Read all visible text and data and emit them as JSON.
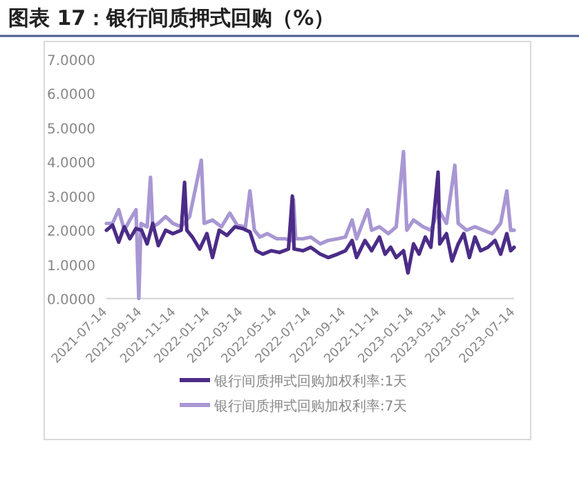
{
  "chart_data": {
    "type": "line",
    "title": "图表 17：银行间质押式回购（%）",
    "legend": "bottom",
    "line_style": "solid",
    "marker": "none",
    "grid": false,
    "xlim": [
      "2021-07-14",
      "2023-07-14"
    ],
    "xticks": [
      "2021-07-14",
      "2021-09-14",
      "2021-11-14",
      "2022-01-14",
      "2022-03-14",
      "2022-05-14",
      "2022-07-14",
      "2022-09-14",
      "2022-11-14",
      "2023-01-14",
      "2023-03-14",
      "2023-05-14",
      "2023-07-14"
    ],
    "ylim": [
      0,
      7
    ],
    "yticks": [
      {
        "value": 0,
        "label": "0.0000"
      },
      {
        "value": 1,
        "label": "1.0000"
      },
      {
        "value": 2,
        "label": "2.0000"
      },
      {
        "value": 3,
        "label": "3.0000"
      },
      {
        "value": 4,
        "label": "4.0000"
      },
      {
        "value": 5,
        "label": "5.0000"
      },
      {
        "value": 6,
        "label": "6.0000"
      },
      {
        "value": 7,
        "label": "7.0000"
      }
    ],
    "series": [
      {
        "name": "银行间质押式回购加权利率:1天",
        "color": "#4b2c87",
        "x": [
          "2021-07-14",
          "2021-07-25",
          "2021-08-05",
          "2021-08-15",
          "2021-08-25",
          "2021-09-05",
          "2021-09-15",
          "2021-09-25",
          "2021-10-05",
          "2021-10-15",
          "2021-10-28",
          "2021-11-10",
          "2021-11-25",
          "2021-12-01",
          "2021-12-05",
          "2021-12-15",
          "2021-12-28",
          "2022-01-10",
          "2022-01-20",
          "2022-02-01",
          "2022-02-15",
          "2022-03-01",
          "2022-03-15",
          "2022-03-28",
          "2022-04-08",
          "2022-04-20",
          "2022-05-05",
          "2022-05-20",
          "2022-06-05",
          "2022-06-12",
          "2022-06-15",
          "2022-07-01",
          "2022-07-15",
          "2022-08-01",
          "2022-08-15",
          "2022-09-01",
          "2022-09-15",
          "2022-09-27",
          "2022-10-05",
          "2022-10-20",
          "2022-11-01",
          "2022-11-15",
          "2022-11-25",
          "2022-12-05",
          "2022-12-15",
          "2022-12-28",
          "2023-01-05",
          "2023-01-15",
          "2023-01-25",
          "2023-02-05",
          "2023-02-15",
          "2023-02-28",
          "2023-03-03",
          "2023-03-15",
          "2023-03-25",
          "2023-04-05",
          "2023-04-15",
          "2023-04-25",
          "2023-05-05",
          "2023-05-15",
          "2023-05-28",
          "2023-06-10",
          "2023-06-20",
          "2023-07-01",
          "2023-07-08",
          "2023-07-14"
        ],
        "values": [
          2.0,
          2.15,
          1.65,
          2.1,
          1.75,
          2.05,
          2.0,
          1.6,
          2.2,
          1.55,
          2.0,
          1.9,
          2.0,
          3.4,
          2.0,
          1.8,
          1.45,
          1.9,
          1.2,
          2.0,
          1.85,
          2.1,
          2.05,
          1.95,
          1.4,
          1.3,
          1.4,
          1.35,
          1.45,
          3.0,
          1.45,
          1.4,
          1.5,
          1.3,
          1.2,
          1.3,
          1.4,
          1.7,
          1.2,
          1.7,
          1.4,
          1.8,
          1.3,
          1.5,
          1.2,
          1.4,
          0.75,
          1.6,
          1.3,
          1.8,
          1.5,
          3.7,
          1.6,
          1.9,
          1.1,
          1.6,
          1.9,
          1.2,
          1.8,
          1.4,
          1.5,
          1.7,
          1.3,
          1.9,
          1.4,
          1.5
        ]
      },
      {
        "name": "银行间质押式回购加权利率:7天",
        "color": "#a897d3",
        "x": [
          "2021-07-14",
          "2021-07-25",
          "2021-08-05",
          "2021-08-15",
          "2021-08-25",
          "2021-09-05",
          "2021-09-10",
          "2021-09-14",
          "2021-09-25",
          "2021-10-01",
          "2021-10-05",
          "2021-10-15",
          "2021-10-28",
          "2021-11-10",
          "2021-11-25",
          "2021-12-10",
          "2021-12-31",
          "2022-01-05",
          "2022-01-20",
          "2022-02-05",
          "2022-02-20",
          "2022-03-05",
          "2022-03-20",
          "2022-03-28",
          "2022-04-05",
          "2022-04-15",
          "2022-04-28",
          "2022-05-15",
          "2022-05-30",
          "2022-06-10",
          "2022-06-14",
          "2022-06-18",
          "2022-07-01",
          "2022-07-15",
          "2022-08-01",
          "2022-08-15",
          "2022-09-01",
          "2022-09-15",
          "2022-09-27",
          "2022-10-05",
          "2022-10-25",
          "2022-11-01",
          "2022-11-15",
          "2022-12-01",
          "2022-12-15",
          "2022-12-28",
          "2023-01-03",
          "2023-01-15",
          "2023-02-01",
          "2023-02-15",
          "2023-03-01",
          "2023-03-15",
          "2023-03-30",
          "2023-04-05",
          "2023-04-20",
          "2023-05-05",
          "2023-05-20",
          "2023-06-05",
          "2023-06-20",
          "2023-07-01",
          "2023-07-08",
          "2023-07-14"
        ],
        "values": [
          2.2,
          2.2,
          2.6,
          2.0,
          2.3,
          2.6,
          0.0,
          2.2,
          2.1,
          3.55,
          2.1,
          2.2,
          2.4,
          2.2,
          2.1,
          2.4,
          4.05,
          2.2,
          2.3,
          2.1,
          2.5,
          2.15,
          2.1,
          3.15,
          2.0,
          1.8,
          1.9,
          1.75,
          1.75,
          1.7,
          2.9,
          1.75,
          1.75,
          1.8,
          1.6,
          1.7,
          1.75,
          1.8,
          2.3,
          1.75,
          2.6,
          2.0,
          2.1,
          1.9,
          2.1,
          4.3,
          2.0,
          2.3,
          2.1,
          2.0,
          2.6,
          2.2,
          3.9,
          2.2,
          2.0,
          2.1,
          2.0,
          1.9,
          2.2,
          3.15,
          2.0,
          2.0
        ]
      }
    ]
  }
}
